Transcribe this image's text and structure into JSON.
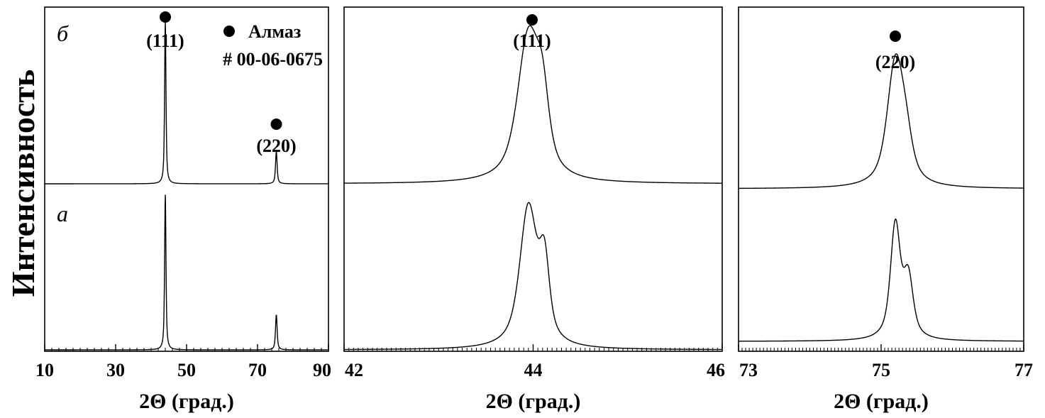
{
  "figure": {
    "ylabel": "Интенсивность",
    "marker_color": "#000000"
  },
  "chart_data": [
    {
      "type": "line",
      "xlabel": "2Θ (град.)",
      "xlim": [
        10,
        90
      ],
      "ticks": [
        "10",
        "30",
        "50",
        "70",
        "90"
      ],
      "tick_values": [
        10,
        30,
        50,
        70,
        90
      ],
      "series": [
        {
          "name": "б",
          "peaks": [
            {
              "x": 44.0,
              "h": 0.92,
              "w": 0.25
            },
            {
              "x": 75.3,
              "h": 0.18,
              "w": 0.3
            }
          ]
        },
        {
          "name": "а",
          "peaks": [
            {
              "x": 44.0,
              "h": 0.93,
              "w": 0.25
            },
            {
              "x": 75.3,
              "h": 0.21,
              "w": 0.3
            }
          ]
        }
      ],
      "annotations": [
        {
          "label": "(111)",
          "x": 44.0
        },
        {
          "label": "(220)",
          "x": 75.3
        }
      ],
      "legend": {
        "label": "Алмаз",
        "pdf": "# 00-06-0675"
      }
    },
    {
      "type": "line",
      "xlabel": "2Θ (град.)",
      "xlim": [
        42,
        46
      ],
      "ticks": [
        "42",
        "44",
        "46"
      ],
      "tick_values": [
        42,
        44,
        46
      ],
      "series": [
        {
          "name": "б",
          "peaks": [
            {
              "x": 43.95,
              "h": 0.82,
              "w": 0.15
            },
            {
              "x": 44.1,
              "h": 0.35,
              "w": 0.09
            }
          ]
        },
        {
          "name": "а",
          "peaks": [
            {
              "x": 43.95,
              "h": 0.84,
              "w": 0.12
            },
            {
              "x": 44.12,
              "h": 0.45,
              "w": 0.07
            }
          ]
        }
      ],
      "annotations": [
        {
          "label": "(111)",
          "x": 44.0
        }
      ]
    },
    {
      "type": "line",
      "xlabel": "2Θ (град.)",
      "xlim": [
        73,
        77
      ],
      "ticks": [
        "73",
        "75",
        "77"
      ],
      "tick_values": [
        73,
        75,
        77
      ],
      "series": [
        {
          "name": "б",
          "peaks": [
            {
              "x": 75.2,
              "h": 0.68,
              "w": 0.15
            },
            {
              "x": 75.35,
              "h": 0.18,
              "w": 0.12
            }
          ]
        },
        {
          "name": "а",
          "peaks": [
            {
              "x": 75.2,
              "h": 0.72,
              "w": 0.09
            },
            {
              "x": 75.38,
              "h": 0.38,
              "w": 0.09
            }
          ]
        }
      ],
      "annotations": [
        {
          "label": "(220)",
          "x": 75.2
        }
      ]
    }
  ]
}
